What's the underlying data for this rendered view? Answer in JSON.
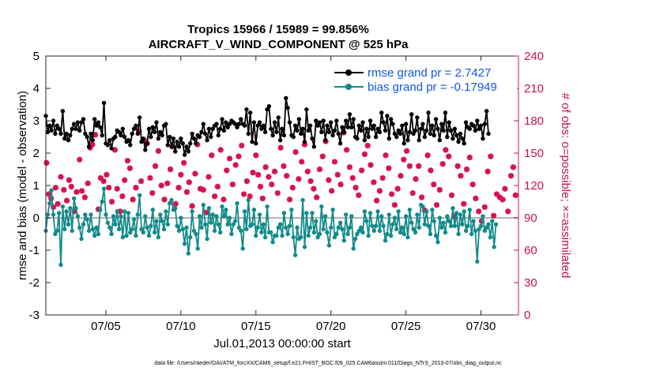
{
  "colors": {
    "rmse": "#000000",
    "bias": "#138a8a",
    "obs": "#d6134f",
    "zero_line": "#b3b3b3",
    "legend_text": "#1155ee",
    "right_axis": "#c8104f"
  },
  "chart_data": {
    "type": "line",
    "title_line1": "Tropics 15966 / 15989 = 99.856%",
    "title_line2": "AIRCRAFT_V_WIND_COMPONENT @ 525 hPa",
    "xlabel": "Jul.01,2013 00:00:00 start",
    "ylabel_left": "rmse and bias (model - observation)",
    "ylabel_right": "# of obs: o=possible; ×=assimilated",
    "xlim": [
      1,
      32.5
    ],
    "ylim_left": [
      -3,
      5
    ],
    "ylim_right": [
      0,
      240
    ],
    "x_ticks": [
      5,
      10,
      15,
      20,
      25,
      30
    ],
    "x_tick_labels": [
      "07/05",
      "07/10",
      "07/15",
      "07/20",
      "07/25",
      "07/30"
    ],
    "y_ticks_left": [
      -3,
      -2,
      -1,
      0,
      1,
      2,
      3,
      4,
      5
    ],
    "y_ticks_right": [
      0,
      30,
      60,
      90,
      120,
      150,
      180,
      210,
      240
    ],
    "legend": {
      "position": "top-right",
      "entries": [
        "rmse grand pr = 2.7427",
        "bias grand pr = -0.17949"
      ]
    },
    "footer": "data file: /Users/raeder/DAI/ATM_forcXX/CAM6_setup/f.e21.FHIST_BGC.f09_025.CAM6assim.011/Diags_NTrS_2013-07/obs_diag_output.nc",
    "x_start": 1.0,
    "x_step": 0.125,
    "rmse": [
      3.15,
      2.65,
      2.85,
      2.7,
      3.0,
      2.6,
      2.85,
      2.75,
      2.6,
      3.3,
      2.45,
      2.6,
      2.4,
      2.55,
      2.75,
      2.9,
      2.75,
      2.95,
      2.7,
      2.95,
      3.05,
      2.6,
      2.5,
      2.2,
      2.6,
      2.4,
      3.05,
      2.85,
      2.95,
      2.8,
      2.55,
      3.55,
      2.3,
      2.25,
      2.4,
      2.15,
      2.45,
      2.5,
      2.7,
      2.65,
      2.55,
      2.75,
      2.5,
      2.35,
      2.4,
      2.25,
      2.6,
      2.75,
      2.85,
      2.6,
      3.1,
      2.35,
      2.45,
      2.1,
      2.3,
      2.75,
      2.5,
      2.8,
      2.65,
      2.95,
      2.45,
      2.65,
      2.55,
      2.85,
      2.9,
      2.25,
      2.5,
      2.2,
      2.45,
      2.05,
      2.35,
      2.2,
      2.45,
      2.3,
      1.95,
      2.2,
      2.05,
      2.3,
      2.6,
      2.45,
      2.3,
      2.55,
      2.5,
      2.65,
      2.9,
      2.6,
      2.4,
      2.75,
      2.5,
      2.75,
      2.85,
      2.9,
      2.55,
      2.75,
      3.05,
      2.7,
      2.95,
      2.8,
      2.9,
      3.0,
      2.95,
      2.9,
      2.8,
      2.9,
      3.05,
      2.9,
      2.85,
      3.35,
      2.6,
      3.25,
      2.35,
      2.95,
      2.3,
      2.85,
      2.95,
      2.75,
      2.85,
      2.65,
      3.35,
      3.45,
      2.75,
      2.55,
      2.95,
      2.65,
      3.1,
      2.4,
      2.75,
      2.55,
      3.7,
      3.4,
      2.95,
      2.55,
      2.5,
      2.85,
      2.7,
      3.05,
      2.6,
      2.75,
      2.35,
      3.35,
      2.7,
      2.85,
      2.45,
      2.2,
      3.0,
      2.85,
      2.95,
      2.65,
      3.0,
      2.4,
      2.85,
      2.65,
      2.95,
      2.55,
      2.7,
      3.0,
      2.6,
      2.3,
      2.8,
      2.65,
      3.0,
      2.8,
      3.2,
      2.8,
      3.05,
      2.5,
      2.45,
      2.85,
      2.7,
      2.95,
      2.4,
      2.75,
      2.5,
      3.0,
      2.75,
      2.85,
      2.5,
      2.75,
      2.65,
      3.25,
      2.95,
      2.7,
      3.15,
      2.45,
      3.05,
      2.9,
      2.6,
      2.5,
      2.7,
      2.6,
      2.85,
      2.3,
      2.9,
      2.4,
      2.65,
      3.2,
      2.6,
      2.7,
      3.1,
      2.4,
      2.75,
      2.9,
      2.5,
      2.7,
      3.25,
      2.6,
      2.85,
      2.55,
      3.05,
      2.75,
      2.4,
      2.9,
      2.7,
      3.25,
      2.5,
      2.95,
      2.7,
      2.45,
      2.75,
      2.55,
      2.35,
      2.6,
      2.45,
      2.3,
      2.95,
      2.8,
      2.75,
      2.9,
      2.85,
      2.7,
      3.0,
      2.75,
      2.85,
      2.45,
      2.9,
      3.3,
      2.6
    ],
    "bias": [
      -0.4,
      0.1,
      0.45,
      0.85,
      0.1,
      -0.5,
      -0.4,
      0.15,
      -1.45,
      0.35,
      -0.35,
      0.2,
      -0.2,
      0.3,
      -0.4,
      0.6,
      0.3,
      0.05,
      -0.3,
      -0.65,
      -0.2,
      0.1,
      -0.05,
      -0.4,
      0.1,
      -0.35,
      -0.55,
      -0.3,
      -0.5,
      0.25,
      0.5,
      0.9,
      0.1,
      -0.15,
      -0.3,
      -0.5,
      0.05,
      -0.2,
      0.2,
      -0.35,
      0.05,
      -0.6,
      0.2,
      -0.55,
      0.15,
      -0.45,
      -0.35,
      -0.05,
      -0.55,
      0.1,
      0.7,
      -0.35,
      -0.45,
      0.05,
      -0.3,
      -0.55,
      -0.25,
      0.25,
      -0.45,
      -0.1,
      -0.6,
      0.1,
      -0.1,
      -0.35,
      0.2,
      -0.2,
      0.45,
      0.55,
      0.25,
      0.3,
      -0.25,
      -0.4,
      0.0,
      -0.35,
      -0.8,
      -0.3,
      -1.1,
      -0.6,
      0.2,
      -0.4,
      -0.5,
      -0.95,
      0.05,
      -0.3,
      0.4,
      -0.2,
      -0.65,
      0.3,
      -0.15,
      0.1,
      -0.4,
      0.05,
      -0.2,
      -0.45,
      0.35,
      0.05,
      0.25,
      -0.2,
      0.0,
      -0.5,
      -0.2,
      -0.1,
      0.45,
      -0.3,
      -0.4,
      -0.95,
      0.2,
      -0.35,
      0.55,
      -0.25,
      -0.2,
      0.25,
      -0.55,
      -0.3,
      0.1,
      -0.45,
      -0.2,
      -0.6,
      0.35,
      -0.45,
      -0.45,
      -0.75,
      -0.55,
      -0.55,
      -0.3,
      -0.2,
      -0.55,
      0.15,
      -0.3,
      -0.5,
      -0.25,
      0.25,
      -0.6,
      -1.15,
      -0.3,
      -0.65,
      -0.6,
      0.55,
      -0.9,
      0.15,
      -0.55,
      -0.3,
      0.15,
      -0.45,
      -0.1,
      -0.6,
      -0.5,
      0.35,
      -0.35,
      0.05,
      -0.45,
      -0.85,
      -0.3,
      0.25,
      -0.6,
      -0.5,
      -0.3,
      -0.15,
      -0.35,
      -0.7,
      0.1,
      -0.5,
      -0.3,
      0.05,
      -0.95,
      -0.65,
      -0.5,
      -0.4,
      -0.3,
      -0.45,
      0.2,
      -0.1,
      -0.55,
      0.15,
      -0.25,
      -0.4,
      -0.25,
      0.2,
      -0.4,
      0.05,
      -0.25,
      -0.7,
      -0.5,
      0.1,
      -0.55,
      -0.2,
      0.0,
      -0.35,
      0.2,
      -0.45,
      -0.3,
      -0.5,
      0.05,
      -0.6,
      0.25,
      -0.15,
      -0.35,
      -0.45,
      0.1,
      -0.3,
      0.4,
      0.35,
      -0.2,
      0.2,
      -0.25,
      -0.5,
      0.25,
      -0.1,
      -0.55,
      -0.75,
      0.0,
      -0.3,
      -0.15,
      -0.45,
      0.05,
      -0.1,
      -0.25,
      0.3,
      -0.25,
      0.15,
      -0.5,
      0.1,
      -0.2,
      0.2,
      -0.4,
      -0.25,
      0.25,
      -0.5,
      -0.1,
      -0.4,
      -1.35,
      -0.35,
      -0.25,
      0.05,
      -0.4,
      -0.3,
      -0.2,
      -0.6,
      -0.1,
      -0.9,
      -0.2
    ],
    "obs_x": [
      1.05,
      1.2,
      1.35,
      1.5,
      1.65,
      1.8,
      2.0,
      2.2,
      2.4,
      2.55,
      2.7,
      2.9,
      3.05,
      3.25,
      3.4,
      3.6,
      3.8,
      3.95,
      4.1,
      4.3,
      4.5,
      4.65,
      4.85,
      5.05,
      5.2,
      5.4,
      5.6,
      5.75,
      5.95,
      6.1,
      6.25,
      6.45,
      6.6,
      6.8,
      7.0,
      7.2,
      7.35,
      7.55,
      7.75,
      7.95,
      8.1,
      8.3,
      8.5,
      8.7,
      8.9,
      9.1,
      9.3,
      9.45,
      9.65,
      9.85,
      10.0,
      10.2,
      10.4,
      10.55,
      10.75,
      10.95,
      11.1,
      11.3,
      11.5,
      11.7,
      11.85,
      12.05,
      12.25,
      12.45,
      12.65,
      12.85,
      13.05,
      13.25,
      13.45,
      13.65,
      13.85,
      14.05,
      14.2,
      14.4,
      14.6,
      14.8,
      15.0,
      15.15,
      15.3,
      15.45,
      15.65,
      15.85,
      16.05,
      16.25,
      16.45,
      16.65,
      16.85,
      17.05,
      17.25,
      17.45,
      17.65,
      17.85,
      18.05,
      18.25,
      18.45,
      18.65,
      18.85,
      19.05,
      19.25,
      19.45,
      19.65,
      19.85,
      20.05,
      20.25,
      20.45,
      20.65,
      20.85,
      21.05,
      21.25,
      21.45,
      21.65,
      21.85,
      22.05,
      22.25,
      22.45,
      22.65,
      22.85,
      23.05,
      23.25,
      23.45,
      23.65,
      23.85,
      24.05,
      24.25,
      24.45,
      24.65,
      24.85,
      25.05,
      25.25,
      25.45,
      25.65,
      25.85,
      26.05,
      26.25,
      26.45,
      26.65,
      26.85,
      27.05,
      27.25,
      27.45,
      27.65,
      27.85,
      28.05,
      28.25,
      28.45,
      28.65,
      28.85,
      29.05,
      29.25,
      29.45,
      29.65,
      29.85,
      30.05,
      30.25,
      30.45,
      30.65,
      30.85,
      31.05,
      31.25,
      31.45,
      31.6,
      31.8,
      32.0,
      32.15,
      32.3
    ],
    "obs": [
      141,
      112,
      108,
      100,
      118,
      103,
      128,
      116,
      106,
      125,
      119,
      96,
      114,
      144,
      115,
      109,
      122,
      155,
      158,
      167,
      98,
      127,
      124,
      130,
      118,
      105,
      153,
      117,
      96,
      110,
      125,
      143,
      136,
      107,
      118,
      170,
      124,
      162,
      159,
      127,
      113,
      138,
      152,
      120,
      107,
      122,
      135,
      156,
      103,
      118,
      130,
      141,
      114,
      123,
      101,
      131,
      158,
      117,
      116,
      95,
      128,
      148,
      110,
      119,
      153,
      107,
      134,
      145,
      121,
      139,
      147,
      157,
      112,
      124,
      110,
      132,
      148,
      130,
      119,
      108,
      137,
      128,
      121,
      133,
      113,
      155,
      138,
      129,
      107,
      118,
      151,
      126,
      142,
      158,
      133,
      124,
      117,
      109,
      135,
      147,
      161,
      125,
      115,
      142,
      130,
      121,
      169,
      153,
      137,
      127,
      118,
      111,
      134,
      149,
      157,
      139,
      123,
      106,
      115,
      127,
      148,
      136,
      112,
      102,
      117,
      129,
      144,
      152,
      138,
      113,
      126,
      138,
      109,
      97,
      148,
      134,
      121,
      102,
      116,
      140,
      153,
      147,
      111,
      91,
      138,
      129,
      103,
      135,
      146,
      121,
      108,
      96,
      87,
      100,
      133,
      147,
      92,
      112,
      109,
      107,
      117,
      96,
      129,
      137,
      111,
      0
    ]
  }
}
